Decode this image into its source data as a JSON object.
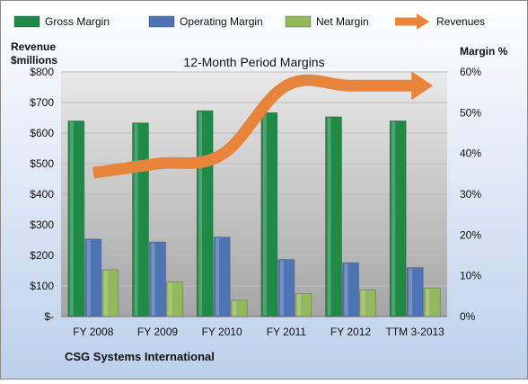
{
  "chart_data": {
    "type": "bar",
    "title": "12-Month Period Margins",
    "company": "CSG Systems International",
    "categories": [
      "FY 2008",
      "FY 2009",
      "FY 2010",
      "FY 2011",
      "FY 2012",
      "TTM 3-2013"
    ],
    "left_axis": {
      "label_line1": "Revenue",
      "label_line2": "$millions",
      "ylim": [
        0,
        800
      ],
      "ticks": [
        "$-",
        "$100",
        "$200",
        "$300",
        "$400",
        "$500",
        "$600",
        "$700",
        "$800"
      ]
    },
    "right_axis": {
      "label": "Margin %",
      "ylim": [
        0,
        60
      ],
      "ticks": [
        "0%",
        "10%",
        "20%",
        "30%",
        "40%",
        "50%",
        "60%"
      ]
    },
    "series": [
      {
        "name": "Gross Margin",
        "axis": "right",
        "color": "#1e8a46",
        "values": [
          48,
          47.5,
          50.5,
          50,
          49,
          48
        ]
      },
      {
        "name": "Operating Margin",
        "axis": "right",
        "color": "#4f74b6",
        "values": [
          19,
          18.3,
          19.5,
          14,
          13.2,
          12
        ]
      },
      {
        "name": "Net Margin",
        "axis": "right",
        "color": "#94b85c",
        "values": [
          11.5,
          8.5,
          4,
          5.6,
          6.5,
          7
        ]
      },
      {
        "name": "Revenues",
        "axis": "left",
        "type": "line",
        "color": "#e8853d",
        "values": [
          470,
          500,
          530,
          755,
          755,
          755
        ]
      }
    ],
    "grid": true,
    "legend_position": "top"
  }
}
